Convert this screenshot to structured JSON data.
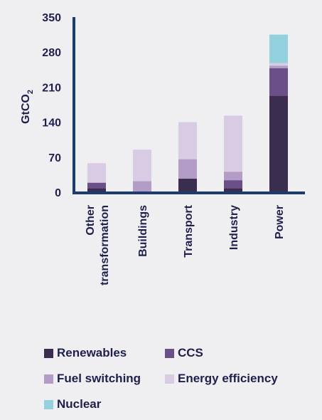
{
  "chart_data": {
    "type": "bar",
    "stacked": true,
    "title": "",
    "xlabel": "",
    "ylabel_main": "GtCO",
    "ylabel_sub": "2",
    "ylim": [
      0,
      350
    ],
    "yticks": [
      "0",
      "70",
      "140",
      "210",
      "280",
      "350"
    ],
    "categories": [
      [
        "Other",
        "transformation"
      ],
      [
        "Buildings"
      ],
      [
        "Transport"
      ],
      [
        "Industry"
      ],
      [
        "Power"
      ]
    ],
    "series": [
      {
        "name": "Renewables",
        "color": "#3b2d50",
        "values": [
          8,
          0,
          27,
          8,
          193
        ]
      },
      {
        "name": "CCS",
        "color": "#6a4f88",
        "values": [
          11,
          0,
          0,
          16,
          55
        ]
      },
      {
        "name": "Fuel switching",
        "color": "#b39cc6",
        "values": [
          0,
          22,
          39,
          17,
          5
        ]
      },
      {
        "name": "Energy efficiency",
        "color": "#d8cbe3",
        "values": [
          39,
          63,
          74,
          112,
          5
        ]
      },
      {
        "name": "Nuclear",
        "color": "#93d1df",
        "values": [
          0,
          0,
          0,
          0,
          57
        ]
      }
    ],
    "grid": false,
    "legend_position": "bottom"
  }
}
